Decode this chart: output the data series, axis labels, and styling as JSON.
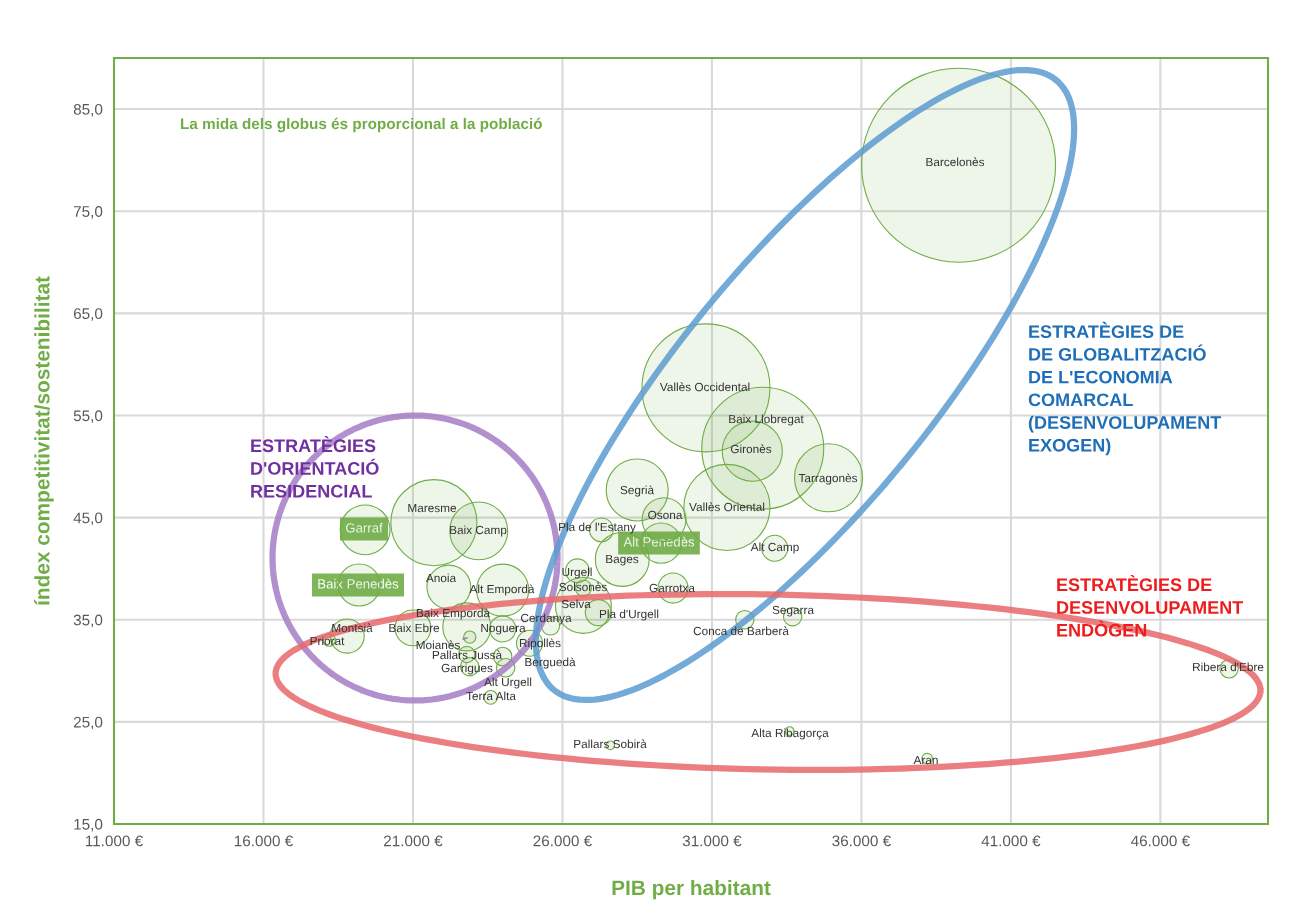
{
  "chart_data": {
    "type": "bubble",
    "xlabel": "PIB per habitant",
    "ylabel": "índex competitivitat/sostenibilitat",
    "annotations": [
      "La mida dels globus és proporcional a la població",
      "ESTRATÈGIES\nD'ORIENTACIÓ\nRESIDENCIAL",
      "ESTRATÈGIES DE\nDE GLOBALITZACIÓ\nDE L'ECONOMIA\nCOMARCAL\n(DESENVOLUPAMENT\nEXOGEN)",
      "ESTRATÈGIES DE\nDESENVOLUPAMENT\nENDÒGEN"
    ],
    "xlim": [
      11000,
      49600
    ],
    "ylim": [
      15,
      90
    ],
    "xticks": [
      {
        "value": 11000,
        "label": "11.000 €"
      },
      {
        "value": 16000,
        "label": "16.000 €"
      },
      {
        "value": 21000,
        "label": "21.000 €"
      },
      {
        "value": 26000,
        "label": "26.000 €"
      },
      {
        "value": 31000,
        "label": "31.000 €"
      },
      {
        "value": 36000,
        "label": "36.000 €"
      },
      {
        "value": 41000,
        "label": "41.000 €"
      },
      {
        "value": 46000,
        "label": "46.000 €"
      }
    ],
    "yticks": [
      {
        "value": 15,
        "label": "15,0"
      },
      {
        "value": 25,
        "label": "25,0"
      },
      {
        "value": 35,
        "label": "35,0"
      },
      {
        "value": 45,
        "label": "45,0"
      },
      {
        "value": 55,
        "label": "55,0"
      },
      {
        "value": 65,
        "label": "65,0"
      },
      {
        "value": 75,
        "label": "75,0"
      },
      {
        "value": 85,
        "label": "85,0"
      }
    ],
    "grid": true,
    "series": [
      {
        "color": "#70ad47",
        "x": [
          39250,
          30800,
          32700,
          32350,
          34900,
          31500,
          28500,
          29400,
          29300,
          28000,
          27300,
          26500,
          26700,
          26700,
          27200,
          29700,
          33100,
          21700,
          23200,
          19400,
          19200,
          22200,
          24000,
          22800,
          24000,
          25600,
          24900,
          18800,
          18200,
          21000,
          22900,
          22800,
          22900,
          24000,
          24100,
          23600,
          32100,
          33700,
          48300,
          27600,
          33600,
          38200
        ],
        "values": [
          79.5,
          57.7,
          51.8,
          51.5,
          48.9,
          46.0,
          47.7,
          44.8,
          42.5,
          40.9,
          43.8,
          39.8,
          38.1,
          36.4,
          35.7,
          38.1,
          42.0,
          44.5,
          43.7,
          43.8,
          38.4,
          38.2,
          37.9,
          34.3,
          34.1,
          34.4,
          32.7,
          33.4,
          33.0,
          34.2,
          33.3,
          31.6,
          30.4,
          31.4,
          30.3,
          27.4,
          35.0,
          35.3,
          30.2,
          22.7,
          24.1,
          21.4
        ],
        "sizes": [
          1,
          0.435,
          0.395,
          0.096,
          0.123,
          0.197,
          0.102,
          0.051,
          0.043,
          0.077,
          0.015,
          0.015,
          0.007,
          0.083,
          0.018,
          0.024,
          0.018,
          0.197,
          0.089,
          0.066,
          0.047,
          0.051,
          0.072,
          0.061,
          0.018,
          0.009,
          0.018,
          0.031,
          0.004,
          0.034,
          0.004,
          0.007,
          0.009,
          0.009,
          0.009,
          0.005,
          0.009,
          0.009,
          0.009,
          0.002,
          0.002,
          0.003
        ],
        "value_labels": [
          "Barcelonès",
          "Vallès Occidental",
          "Baix Llobregat",
          "Gironès",
          "Tarragonès",
          "Vallès Oriental",
          "Segrià",
          "Osona",
          "Alt Penedès",
          "Bages",
          "Pla de l'Estany",
          "Urgell",
          "Solsonès",
          "Selva",
          "Pla d'Urgell",
          "Garrotxa",
          "Alt Camp",
          "Maresme",
          "Baix Camp",
          "Garraf",
          "Baix Penedès",
          "Anoia",
          "Alt Empordà",
          "Baix Empordà",
          "Noguera",
          "Cerdanya",
          "Ripollès",
          "Montsià",
          "Priorat",
          "Baix Ebre",
          "Moianès",
          "Pallars Jussà",
          "Garrigues",
          "Berguedà",
          "Alt Urgell",
          "Terra Alta",
          "Conca de Barberà",
          "Segarra",
          "Ribera d'Ebre",
          "Pallars Sobirà",
          "Alta Ribagorça",
          "Aran"
        ]
      }
    ]
  }
}
